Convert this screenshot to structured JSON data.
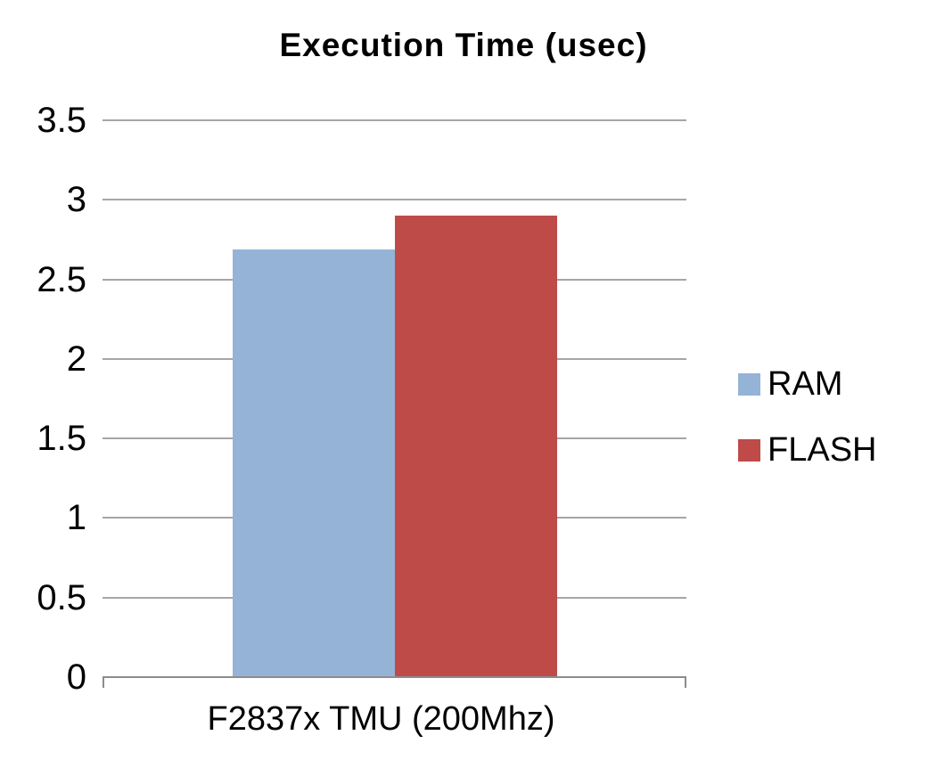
{
  "chart_data": {
    "type": "bar",
    "title": "Execution Time (usec)",
    "categories": [
      "F2837x TMU (200Mhz)"
    ],
    "series": [
      {
        "name": "RAM",
        "values": [
          2.69
        ],
        "color": "#95b3d7"
      },
      {
        "name": "FLASH",
        "values": [
          2.9
        ],
        "color": "#be4b48"
      }
    ],
    "ylim": [
      0,
      3.5
    ],
    "yticks": [
      0,
      0.5,
      1,
      1.5,
      2,
      2.5,
      3,
      3.5
    ],
    "xlabel": "",
    "ylabel": "",
    "grid": true,
    "legend_position": "right",
    "colors": {
      "gridline": "#a6a6a6",
      "axis": "#8c8c8c",
      "text": "#000000",
      "background": "#ffffff"
    }
  }
}
